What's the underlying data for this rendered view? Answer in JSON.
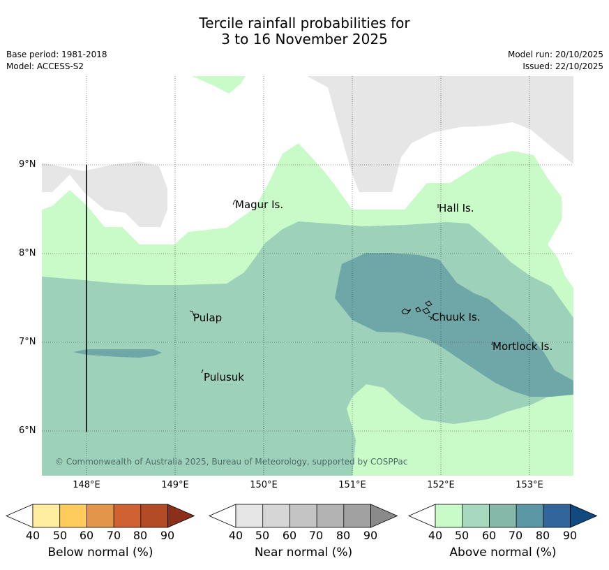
{
  "title_line1": "Tercile rainfall probabilities for",
  "title_line2": "3 to 16 November 2025",
  "base_period": "Base period: 1981-2018",
  "model": "Model: ACCESS-S2",
  "model_run": "Model run: 20/10/2025",
  "issued": "Issued: 22/10/2025",
  "copyright": "© Commonwealth of Australia 2025, Bureau of Meteorology, supported by COSPPac",
  "lat_ticks": [
    "9°N",
    "8°N",
    "7°N",
    "6°N"
  ],
  "lon_ticks": [
    "148°E",
    "149°E",
    "150°E",
    "151°E",
    "152°E",
    "153°E"
  ],
  "places": [
    "Magur Is.",
    "Hall Is.",
    "Pulap",
    "Chuuk Is.",
    "Mortlock Is.",
    "Pulusuk"
  ],
  "colorbars": [
    {
      "label": "Below normal (%)",
      "ticks": [
        "40",
        "50",
        "60",
        "70",
        "80",
        "90"
      ],
      "colors": [
        "#ffeda0",
        "#fecc5c",
        "#e3964a",
        "#cf6133",
        "#b34b27",
        "#8b2e1a"
      ]
    },
    {
      "label": "Near normal (%)",
      "ticks": [
        "40",
        "50",
        "60",
        "70",
        "80",
        "90"
      ],
      "colors": [
        "#e6e6e6",
        "#d6d6d6",
        "#c4c4c4",
        "#b3b3b3",
        "#a1a1a1",
        "#8a8a8a"
      ]
    },
    {
      "label": "Above normal (%)",
      "ticks": [
        "40",
        "50",
        "60",
        "70",
        "80",
        "90"
      ],
      "colors": [
        "#c8fbc8",
        "#a7d9be",
        "#86b8a9",
        "#5c97a5",
        "#31659c",
        "#124a80"
      ]
    }
  ]
}
